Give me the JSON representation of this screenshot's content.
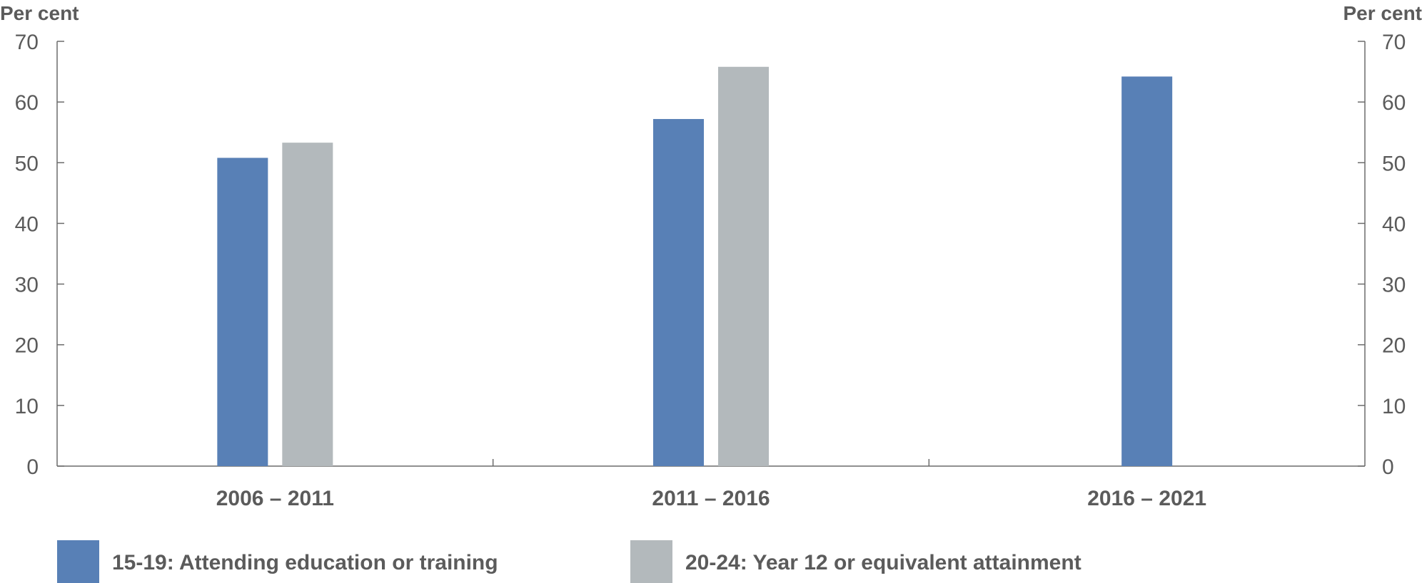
{
  "chart_data": {
    "type": "bar",
    "y_unit_left": "Per cent",
    "y_unit_right": "Per cent",
    "categories": [
      "2006 – 2011",
      "2011 – 2016",
      "2016 – 2021"
    ],
    "series": [
      {
        "name": "15-19: Attending education or training",
        "color": "#5880b6",
        "values": [
          50.8,
          57.2,
          64.2
        ]
      },
      {
        "name": "20-24: Year 12 or equivalent attainment",
        "color": "#b3b9bc",
        "values": [
          53.3,
          65.8,
          null
        ]
      }
    ],
    "ylim": [
      0,
      70
    ],
    "yticks": [
      0,
      10,
      20,
      30,
      40,
      50,
      60,
      70
    ],
    "grid": false,
    "dual_y_axis": true,
    "legend_position": "bottom"
  }
}
